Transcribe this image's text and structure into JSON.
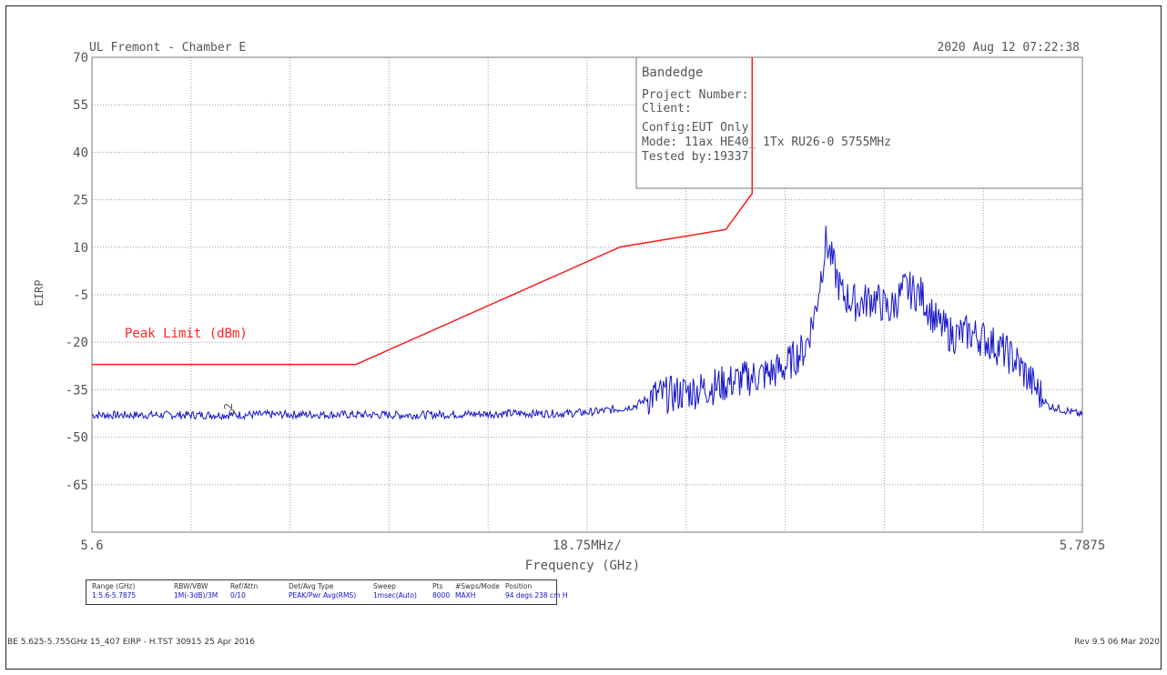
{
  "header": {
    "site": "UL Fremont - Chamber E",
    "datetime": "2020 Aug 12    07:22:38"
  },
  "info_box": {
    "title": "Bandedge",
    "lines": [
      "Project Number:",
      "Client:",
      "Config:EUT Only",
      "Mode: 11ax HE40_ 1Tx RU26-0 5755MHz",
      "Tested by:19337"
    ]
  },
  "chart_data": {
    "type": "line",
    "xlabel": "Frequency (GHz)",
    "ylabel": "EIRP",
    "x_tick_labels": [
      "5.6",
      "18.75MHz/",
      "5.7875"
    ],
    "y_ticks": [
      70,
      55,
      40,
      25,
      10,
      -5,
      -20,
      -35,
      -50,
      -65
    ],
    "xlim": [
      5.6,
      5.7875
    ],
    "ylim": [
      -80,
      70
    ],
    "grid": true,
    "limit_label": "Peak Limit (dBm)",
    "series": [
      {
        "name": "Peak Limit (dBm)",
        "color": "#ff1a1a",
        "x": [
          5.6,
          5.65,
          5.7,
          5.72,
          5.725,
          5.725
        ],
        "y": [
          -27,
          -27,
          10.1,
          15.6,
          27,
          70
        ]
      },
      {
        "color": "#1414c8",
        "x": [
          5.6,
          5.62,
          5.64,
          5.66,
          5.68,
          5.69,
          5.695,
          5.7,
          5.703,
          5.706,
          5.71,
          5.715,
          5.72,
          5.725,
          5.728,
          5.731,
          5.733,
          5.735,
          5.737,
          5.739,
          5.742,
          5.745,
          5.748,
          5.751,
          5.754,
          5.757,
          5.76,
          5.763,
          5.766,
          5.769,
          5.772,
          5.775,
          5.778,
          5.781,
          5.7875
        ],
        "y": [
          -43,
          -43,
          -42.8,
          -43,
          -42.5,
          -42.5,
          -42,
          -41,
          -40,
          -37,
          -36.5,
          -35,
          -33,
          -31,
          -30,
          -28,
          -25,
          -22,
          -10,
          12,
          -5,
          -8,
          -6,
          -10,
          -3,
          -5,
          -14,
          -18,
          -17,
          -19,
          -22,
          -26,
          -33,
          -40,
          -43
        ]
      }
    ],
    "markers": [
      {
        "label": "2",
        "x": 5.6265,
        "y": -42
      }
    ]
  },
  "settings": {
    "columns": [
      {
        "h": "Range (GHz)",
        "v": "1:5.6-5.7875"
      },
      {
        "h": "RBW/VBW",
        "v": "1M(-3dB)/3M"
      },
      {
        "h": "Ref/Attn",
        "v": "0/10"
      },
      {
        "h": "Det/Avg Type",
        "v": "PEAK/Pwr Avg(RMS)"
      },
      {
        "h": "Sweep",
        "v": "1msec(Auto)"
      },
      {
        "h": "Pts",
        "v": "8000"
      },
      {
        "h": "#Swps/Mode",
        "v": "MAXH"
      },
      {
        "h": "Position",
        "v": "94 degs 238 cm H"
      }
    ]
  },
  "footer": {
    "left": "BE 5.625-5.755GHz 15_407 EIRP - H.TST 30915 25 Apr 2016",
    "right": "Rev 9.5 06 Mar 2020"
  }
}
